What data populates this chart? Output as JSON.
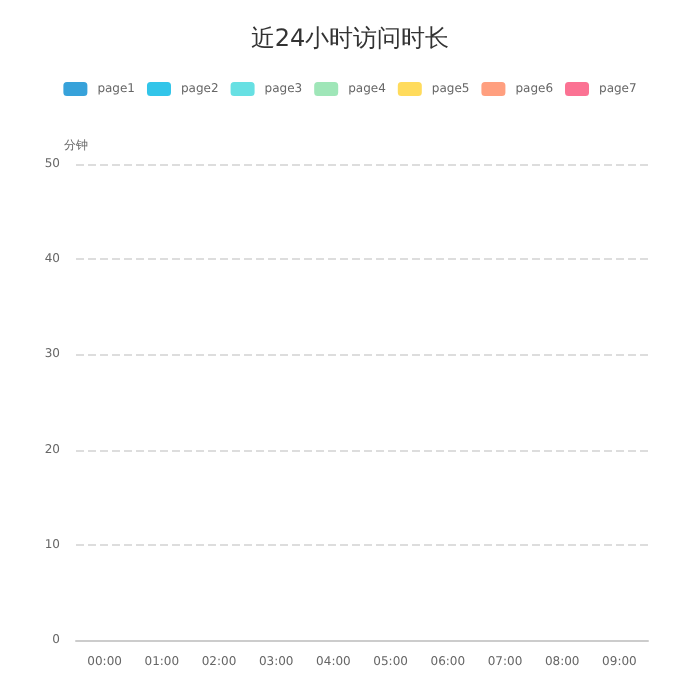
{
  "chart_data": {
    "type": "bar",
    "title": "近24小时访问时长",
    "ylabel": "分钟",
    "categories": [
      "00:00",
      "01:00",
      "02:00",
      "03:00",
      "04:00",
      "05:00",
      "06:00",
      "07:00",
      "08:00",
      "09:00"
    ],
    "series": [
      {
        "name": "page1",
        "color": "#37a2da",
        "values": [
          null,
          null,
          null,
          null,
          null,
          null,
          null,
          null,
          null,
          null
        ]
      },
      {
        "name": "page2",
        "color": "#32c5e9",
        "values": [
          null,
          null,
          null,
          null,
          null,
          null,
          null,
          null,
          null,
          null
        ]
      },
      {
        "name": "page3",
        "color": "#67e0e3",
        "values": [
          null,
          null,
          null,
          null,
          null,
          null,
          null,
          null,
          null,
          null
        ]
      },
      {
        "name": "page4",
        "color": "#9fe6b8",
        "values": [
          null,
          null,
          null,
          null,
          null,
          null,
          null,
          null,
          null,
          null
        ]
      },
      {
        "name": "page5",
        "color": "#ffdb5c",
        "values": [
          null,
          null,
          null,
          null,
          null,
          null,
          null,
          null,
          null,
          null
        ]
      },
      {
        "name": "page6",
        "color": "#ff9f7f",
        "values": [
          null,
          null,
          null,
          null,
          null,
          null,
          null,
          null,
          null,
          null
        ]
      },
      {
        "name": "page7",
        "color": "#fb7293",
        "values": [
          null,
          null,
          null,
          null,
          null,
          null,
          null,
          null,
          null,
          null
        ]
      }
    ],
    "ylim": [
      0,
      50
    ],
    "yticks": [
      0,
      10,
      20,
      30,
      40,
      50
    ],
    "grid": "y",
    "legend": "top"
  }
}
